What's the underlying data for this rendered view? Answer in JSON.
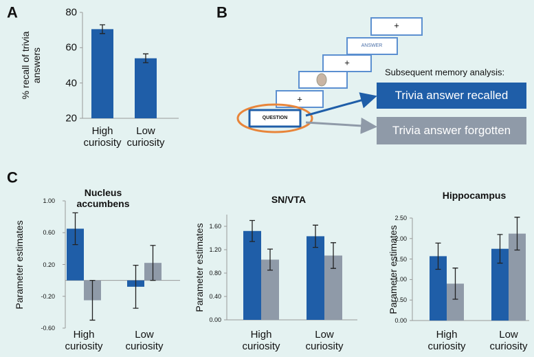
{
  "panel_labels": [
    "A",
    "B",
    "C"
  ],
  "chart_data": [
    {
      "type": "bar",
      "ylabel": "% recall of trivia answers",
      "categories": [
        "High curiosity",
        "Low curiosity"
      ],
      "series": [
        {
          "color": "#1f5ea8",
          "values": [
            70.5,
            54
          ],
          "errors": [
            2.5,
            2.5
          ]
        }
      ],
      "ylim": [
        20,
        80
      ],
      "yticks": [
        20,
        40,
        60,
        80
      ]
    },
    {
      "type": "bar",
      "title": "Nucleus accumbens",
      "ylabel": "Parameter estimates",
      "categories": [
        "High curiosity",
        "Low curiosity"
      ],
      "series": [
        {
          "color": "#1f5ea8",
          "values": [
            0.65,
            -0.08
          ],
          "errors": [
            0.2,
            0.27
          ]
        },
        {
          "color": "#8f9aa8",
          "values": [
            -0.25,
            0.22
          ],
          "errors": [
            0.25,
            0.22
          ]
        }
      ],
      "ylim": [
        -0.6,
        1.0
      ],
      "yticks": [
        {
          "value": -0.6,
          "label": "-0.60"
        },
        {
          "value": -0.2,
          "label": "-0.20"
        },
        {
          "value": 0.2,
          "label": "0.20"
        },
        {
          "value": 0.6,
          "label": "0.60"
        },
        {
          "value": 1.0,
          "label": "1.00"
        }
      ]
    },
    {
      "type": "bar",
      "title": "SN/VTA",
      "ylabel": "Parameter estimates",
      "categories": [
        "High curiosity",
        "Low curiosity"
      ],
      "series": [
        {
          "color": "#1f5ea8",
          "values": [
            1.52,
            1.43
          ],
          "errors": [
            0.18,
            0.19
          ]
        },
        {
          "color": "#8f9aa8",
          "values": [
            1.03,
            1.1
          ],
          "errors": [
            0.18,
            0.22
          ]
        }
      ],
      "ylim": [
        0,
        1.8
      ],
      "yticks": [
        {
          "value": 0,
          "label": "0.00"
        },
        {
          "value": 0.4,
          "label": "0.40"
        },
        {
          "value": 0.8,
          "label": "0.80"
        },
        {
          "value": 1.2,
          "label": "1.20"
        },
        {
          "value": 1.6,
          "label": "1.60"
        }
      ]
    },
    {
      "type": "bar",
      "title": "Hippocampus",
      "ylabel": "Parameter estimates",
      "categories": [
        "High curiosity",
        "Low curiosity"
      ],
      "series": [
        {
          "color": "#1f5ea8",
          "values": [
            1.57,
            1.75
          ],
          "errors": [
            0.32,
            0.35
          ]
        },
        {
          "color": "#8f9aa8",
          "values": [
            0.9,
            2.12
          ],
          "errors": [
            0.38,
            0.4
          ]
        }
      ],
      "ylim": [
        0,
        2.5
      ],
      "yticks": [
        {
          "value": 0,
          "label": "0.00"
        },
        {
          "value": 0.5,
          "label": "0.50"
        },
        {
          "value": 1.0,
          "label": "1.00"
        },
        {
          "value": 1.5,
          "label": "1.50"
        },
        {
          "value": 2.0,
          "label": "2.00"
        },
        {
          "value": 2.5,
          "label": "2.50"
        }
      ]
    }
  ],
  "diagram": {
    "question": "QUESTION",
    "answer": "ANSWER",
    "fixations": [
      "+",
      "+",
      "+"
    ],
    "analysis_title": "Subsequent memory analysis:",
    "outcomes": [
      "Trivia answer recalled",
      "Trivia answer forgotten"
    ]
  }
}
